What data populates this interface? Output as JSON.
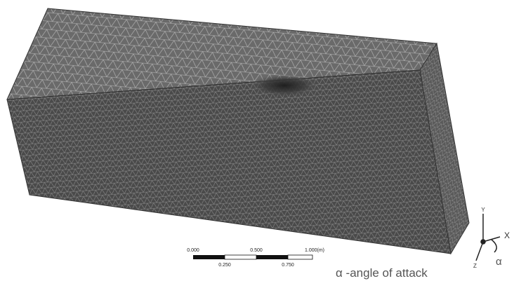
{
  "scale_bar": {
    "top_labels": [
      "0.000",
      "0.500",
      "1.000(m)"
    ],
    "bottom_labels": [
      "0.250",
      "0.750"
    ]
  },
  "triad": {
    "y_label": "Y",
    "x_label": "X",
    "z_label": "Z",
    "angle_label": "α"
  },
  "caption": "α -angle of attack"
}
